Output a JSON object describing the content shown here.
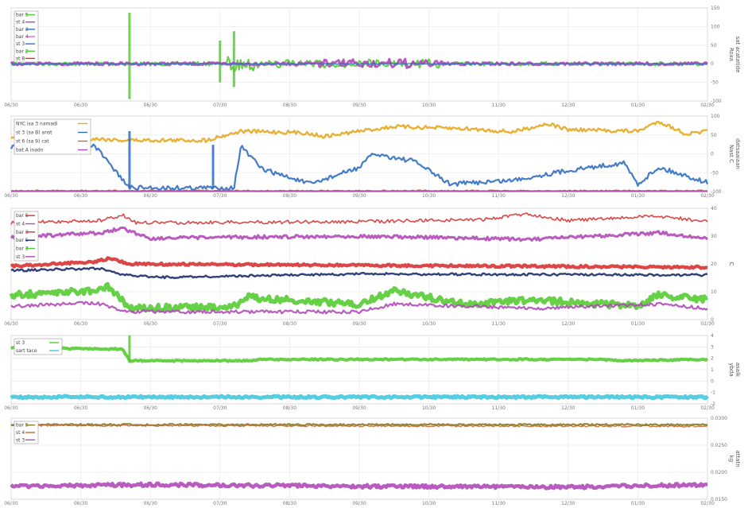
{
  "colors": {
    "green": "#55cc33",
    "magenta": "#b04ab8",
    "blue": "#2f6ec4",
    "orange": "#e5a820",
    "red": "#d83232",
    "navy": "#1a2b6a",
    "brown": "#c26a33",
    "pink": "#e866c8",
    "cyan": "#44c8dd",
    "olive": "#8a7a20",
    "grid": "#ececec",
    "axis": "#888888"
  },
  "chart_data": [
    {
      "type": "line",
      "ylabel": "Roxa\nsat acatatide",
      "yticks": [
        "150",
        "100",
        "50",
        "0",
        "-50",
        "-100"
      ],
      "ylim": [
        -100,
        150
      ],
      "xticks": [
        "06/30",
        "06/30",
        "06/30",
        "07/30",
        "08/30",
        "09/30",
        "10/30",
        "11/30",
        "12/30",
        "01/30",
        "02/30"
      ],
      "legend": [
        "bar 5",
        "st 4",
        "bar 3",
        "bar 4",
        "st 3",
        "bar 2",
        "st 8"
      ],
      "series": []
    },
    {
      "type": "line",
      "ylabel": "Nast C\ndatsaaiaan",
      "yticks": [
        "100",
        "50",
        "0",
        "-50",
        "-100"
      ],
      "ylim": [
        -100,
        100
      ],
      "xticks": [
        "06/30",
        "06/30",
        "06/30",
        "07/30",
        "08/30",
        "09/30",
        "10/30",
        "11/30",
        "12/30",
        "01/30",
        "02/30"
      ],
      "legend": [
        "NYC isa 3 namadi",
        "st 3 (sa B) anst",
        "st 6 (sa 9) cat",
        "bat A inadn"
      ],
      "series": []
    },
    {
      "type": "line",
      "ylabel": "C",
      "yticks": [
        "40",
        "30",
        "20",
        "10",
        "0"
      ],
      "ylim": [
        0,
        40
      ],
      "xticks": [
        "06/30",
        "06/30",
        "06/30",
        "07/30",
        "08/30",
        "09/30",
        "10/30",
        "11/30",
        "12/30",
        "01/30",
        "02/30"
      ],
      "legend": [
        "bar 5",
        "st 4",
        "bar 3",
        "bar 5",
        "bar 3",
        "st 3"
      ],
      "series": []
    },
    {
      "type": "line",
      "ylabel": "ybda\nasalk",
      "yticks": [
        "4",
        "3",
        "2",
        "1",
        "0",
        "-1",
        "-2"
      ],
      "ylim": [
        -2,
        4
      ],
      "xticks": [
        "06/30",
        "06/30",
        "06/30",
        "07/30",
        "08/30",
        "09/30",
        "10/30",
        "11/30",
        "12/30",
        "01/30",
        "02/30"
      ],
      "legend": [
        "st 3",
        "sart tace"
      ],
      "series": []
    },
    {
      "type": "line",
      "ylabel": "kg\nattatn",
      "yticks": [
        "0.0300",
        "0.0250",
        "0.0200",
        "0.0150"
      ],
      "ylim": [
        0.0125,
        0.0325
      ],
      "xticks": [
        "06/30",
        "06/30",
        "06/30",
        "07/30",
        "08/30",
        "09/30",
        "10/30",
        "11/30",
        "12/30",
        "01/30",
        "02/30"
      ],
      "legend": [
        "bar 5",
        "st 4",
        "st 3"
      ],
      "series": []
    }
  ]
}
